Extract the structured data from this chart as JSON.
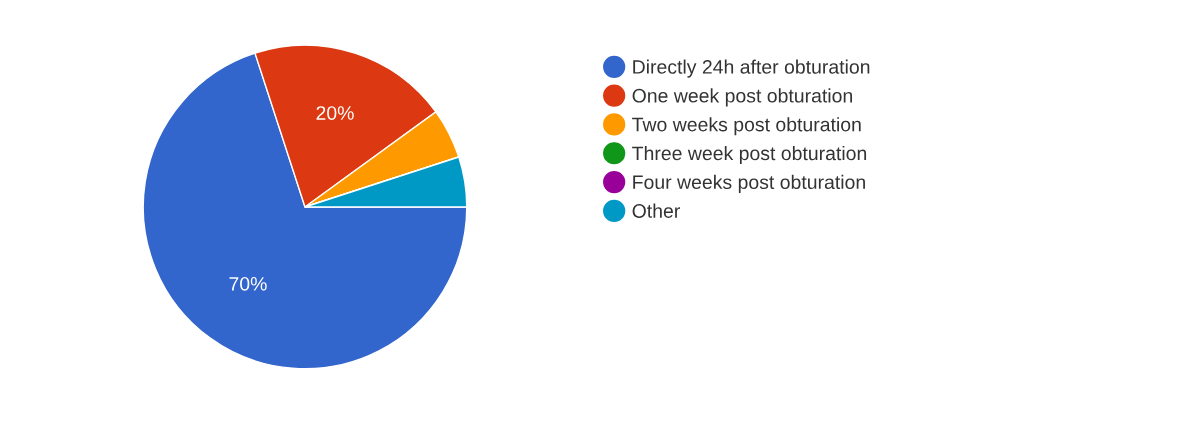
{
  "chart_data": {
    "type": "pie",
    "categories": [
      "Directly 24h after obturation",
      "One week post obturation",
      "Two weeks post obturation",
      "Three week post obturation",
      "Four weeks post obturation",
      "Other"
    ],
    "values": [
      70,
      20,
      5,
      0,
      0,
      5
    ],
    "colors": [
      "#3366cc",
      "#dc3912",
      "#ff9900",
      "#109618",
      "#990099",
      "#0099c6"
    ],
    "value_labels": [
      "70%",
      "20%",
      null,
      null,
      null,
      null
    ],
    "legend": "right"
  }
}
